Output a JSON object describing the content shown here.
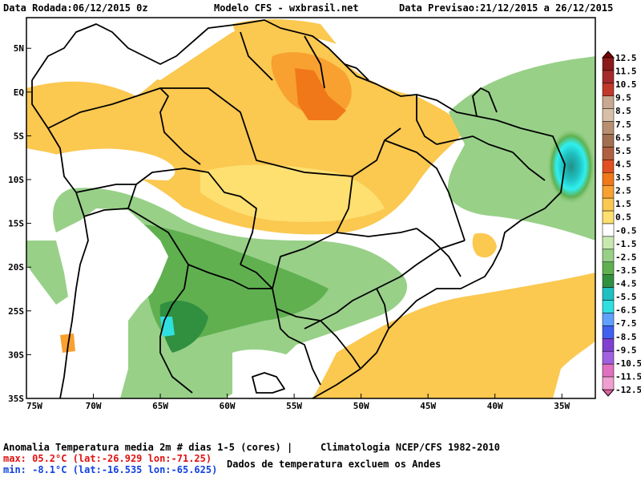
{
  "header": {
    "run_date": "Data Rodada:06/12/2015 0z",
    "model": "Modelo CFS - wxbrasil.net",
    "forecast_date": "Data Previsao:21/12/2015 a 26/12/2015"
  },
  "footer": {
    "variable": "Anomalia Temperatura media 2m # dias 1-5 (cores) |",
    "climatology": "Climatologia NCEP/CFS 1982-2010",
    "max": "max: 05.2°C (lat:-26.929 lon:-71.25)",
    "min": "min: -8.1°C (lat:-16.535 lon:-65.625)",
    "note": "Dados de temperatura excluem os Andes"
  },
  "axes": {
    "lon_labels": [
      "75W",
      "70W",
      "65W",
      "60W",
      "55W",
      "50W",
      "45W",
      "40W",
      "35W"
    ],
    "lat_labels": [
      "5N",
      "EQ",
      "5S",
      "10S",
      "15S",
      "20S",
      "25S",
      "30S",
      "35S"
    ]
  },
  "colorbar": {
    "labels": [
      "12.5",
      "11.5",
      "10.5",
      "9.5",
      "8.5",
      "7.5",
      "6.5",
      "5.5",
      "4.5",
      "3.5",
      "2.5",
      "1.5",
      "0.5",
      "-0.5",
      "-1.5",
      "-2.5",
      "-3.5",
      "-4.5",
      "-5.5",
      "-6.5",
      "-7.5",
      "-8.5",
      "-9.5",
      "-10.5",
      "-11.5",
      "-12.5"
    ],
    "colors": [
      "#8b1a1a",
      "#a52a2a",
      "#c0392b",
      "#c8a890",
      "#d8c0a8",
      "#b89070",
      "#a07050",
      "#b06040",
      "#e05020",
      "#f07818",
      "#f8a030",
      "#fbc850",
      "#fde070",
      "#ffffff",
      "#c8e8b0",
      "#98d088",
      "#60b050",
      "#309040",
      "#20c0c0",
      "#30e0e0",
      "#60a0ff",
      "#4060f0",
      "#8040d0",
      "#a060e0",
      "#e070c0",
      "#f0a0d0"
    ],
    "top_cap_color": "#800000",
    "bottom_cap_color": "#e060a0"
  }
}
